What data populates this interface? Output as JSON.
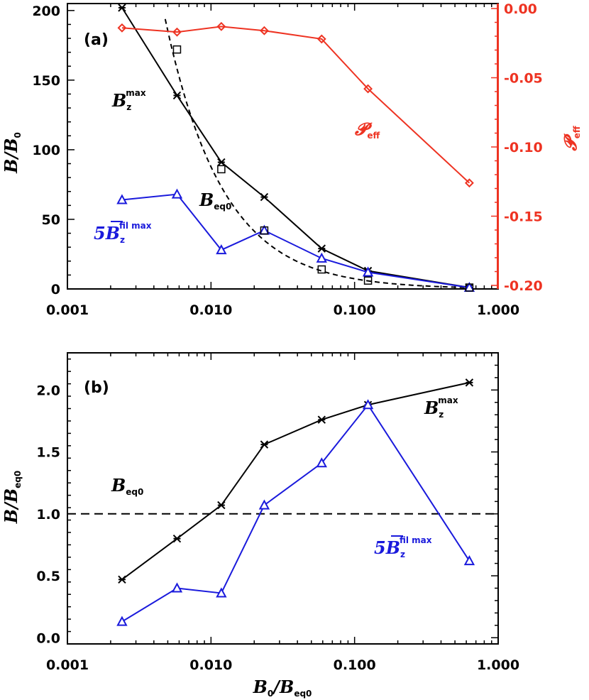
{
  "chart_data": [
    {
      "panel": "(a)",
      "type": "line",
      "xscale": "log",
      "xlim": [
        0.001,
        1.0
      ],
      "x_ticks": [
        "0.001",
        "0.010",
        "0.100",
        "1.000"
      ],
      "ylabel": "B/B",
      "ylabel_sub": "0",
      "ylim": [
        0,
        205
      ],
      "y_ticks": [
        "0",
        "50",
        "100",
        "150",
        "200"
      ],
      "y2label": "𝓟",
      "y2label_sub": "eff",
      "y2lim": [
        -0.2,
        0.0
      ],
      "y2_ticks": [
        "0.00",
        "-0.05",
        "-0.10",
        "-0.15",
        "-0.20"
      ],
      "x": [
        0.0024,
        0.0058,
        0.0118,
        0.0235,
        0.059,
        0.124,
        0.63
      ],
      "series": [
        {
          "name": "Bzmax",
          "label": "B",
          "sub": "z",
          "sup": "max",
          "color": "#000000",
          "marker": "asterisk",
          "values": [
            202,
            139,
            91,
            66,
            29,
            13,
            1
          ]
        },
        {
          "name": "5Bzfil max",
          "label": "5B",
          "sub": "z",
          "sup": "fil max",
          "color": "#1a1adc",
          "marker": "triangle",
          "values": [
            64,
            68,
            28,
            42,
            22,
            12,
            1
          ]
        },
        {
          "name": "Beq0",
          "label": "B",
          "sub": "eq0",
          "color": "#000000",
          "marker": "square",
          "dashed": true,
          "values": [
            null,
            172,
            86,
            42,
            14,
            6,
            1
          ]
        },
        {
          "name": "Peff",
          "label": "𝓟",
          "sub": "eff",
          "color": "#ee3322",
          "marker": "diamond",
          "axis": "right",
          "values": [
            -0.014,
            -0.017,
            -0.013,
            -0.016,
            -0.022,
            -0.058,
            -0.126
          ]
        }
      ]
    },
    {
      "panel": "(b)",
      "type": "line",
      "xscale": "log",
      "xlim": [
        0.001,
        1.0
      ],
      "x_ticks": [
        "0.001",
        "0.010",
        "0.100",
        "1.000"
      ],
      "xlabel": "B",
      "xlabel_sub1": "0",
      "xlabel_mid": "/B",
      "xlabel_sub2": "eq0",
      "ylabel": "B/B",
      "ylabel_sub": "eq0",
      "ylim": [
        -0.05,
        2.3
      ],
      "y_ticks": [
        "0.0",
        "0.5",
        "1.0",
        "1.5",
        "2.0"
      ],
      "reference_line": {
        "y": 1.0,
        "label": "B",
        "sub": "eq0"
      },
      "x": [
        0.0024,
        0.0058,
        0.0118,
        0.0235,
        0.059,
        0.124,
        0.63
      ],
      "series": [
        {
          "name": "Bzmax",
          "label": "B",
          "sub": "z",
          "sup": "max",
          "color": "#000000",
          "marker": "asterisk",
          "values": [
            0.47,
            0.8,
            1.07,
            1.56,
            1.76,
            1.88,
            2.06
          ]
        },
        {
          "name": "5Bzfil max",
          "label": "5B",
          "sub": "z",
          "sup": "fil max",
          "color": "#1a1adc",
          "marker": "triangle",
          "values": [
            0.13,
            0.4,
            0.36,
            1.07,
            1.41,
            1.88,
            0.62
          ]
        }
      ]
    }
  ]
}
